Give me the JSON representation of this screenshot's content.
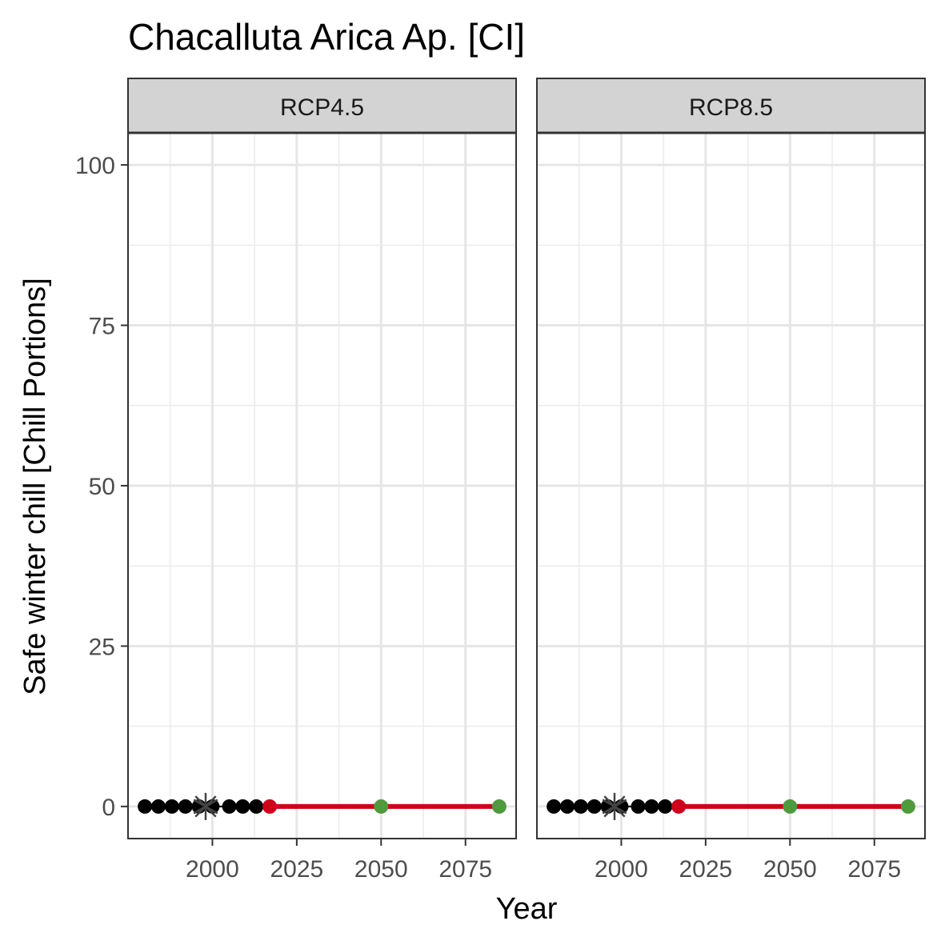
{
  "chart_data": {
    "type": "scatter",
    "title": "Chacalluta Arica Ap. [CI]",
    "xlabel": "Year",
    "ylabel": "Safe winter chill [Chill Portions]",
    "xlim": [
      1975,
      2090
    ],
    "ylim": [
      -5,
      105
    ],
    "x_ticks": [
      2000,
      2025,
      2050,
      2075
    ],
    "y_ticks": [
      0,
      25,
      50,
      75,
      100
    ],
    "grid": true,
    "panels": [
      {
        "label": "RCP4.5",
        "historic_points": {
          "color": "#000000",
          "x": [
            1980,
            1984,
            1988,
            1992,
            1996,
            2000,
            2005,
            2009,
            2013
          ],
          "y": [
            0,
            0,
            0,
            0,
            0,
            0,
            0,
            0,
            0
          ]
        },
        "baseline_marker": {
          "color": "#444444",
          "x": 1998,
          "y": 0
        },
        "scenario_line": {
          "color": "#d0021b",
          "x": [
            2017,
            2085
          ],
          "y": [
            0,
            0
          ]
        },
        "current_point": {
          "color": "#d0021b",
          "x": 2017,
          "y": 0
        },
        "future_points": {
          "color": "#4e9a3c",
          "x": [
            2050,
            2085
          ],
          "y": [
            0,
            0
          ]
        }
      },
      {
        "label": "RCP8.5",
        "historic_points": {
          "color": "#000000",
          "x": [
            1980,
            1984,
            1988,
            1992,
            1996,
            2000,
            2005,
            2009,
            2013
          ],
          "y": [
            0,
            0,
            0,
            0,
            0,
            0,
            0,
            0,
            0
          ]
        },
        "baseline_marker": {
          "color": "#444444",
          "x": 1998,
          "y": 0
        },
        "scenario_line": {
          "color": "#d0021b",
          "x": [
            2017,
            2085
          ],
          "y": [
            0,
            0
          ]
        },
        "current_point": {
          "color": "#d0021b",
          "x": 2017,
          "y": 0
        },
        "future_points": {
          "color": "#4e9a3c",
          "x": [
            2050,
            2085
          ],
          "y": [
            0,
            0
          ]
        }
      }
    ]
  }
}
